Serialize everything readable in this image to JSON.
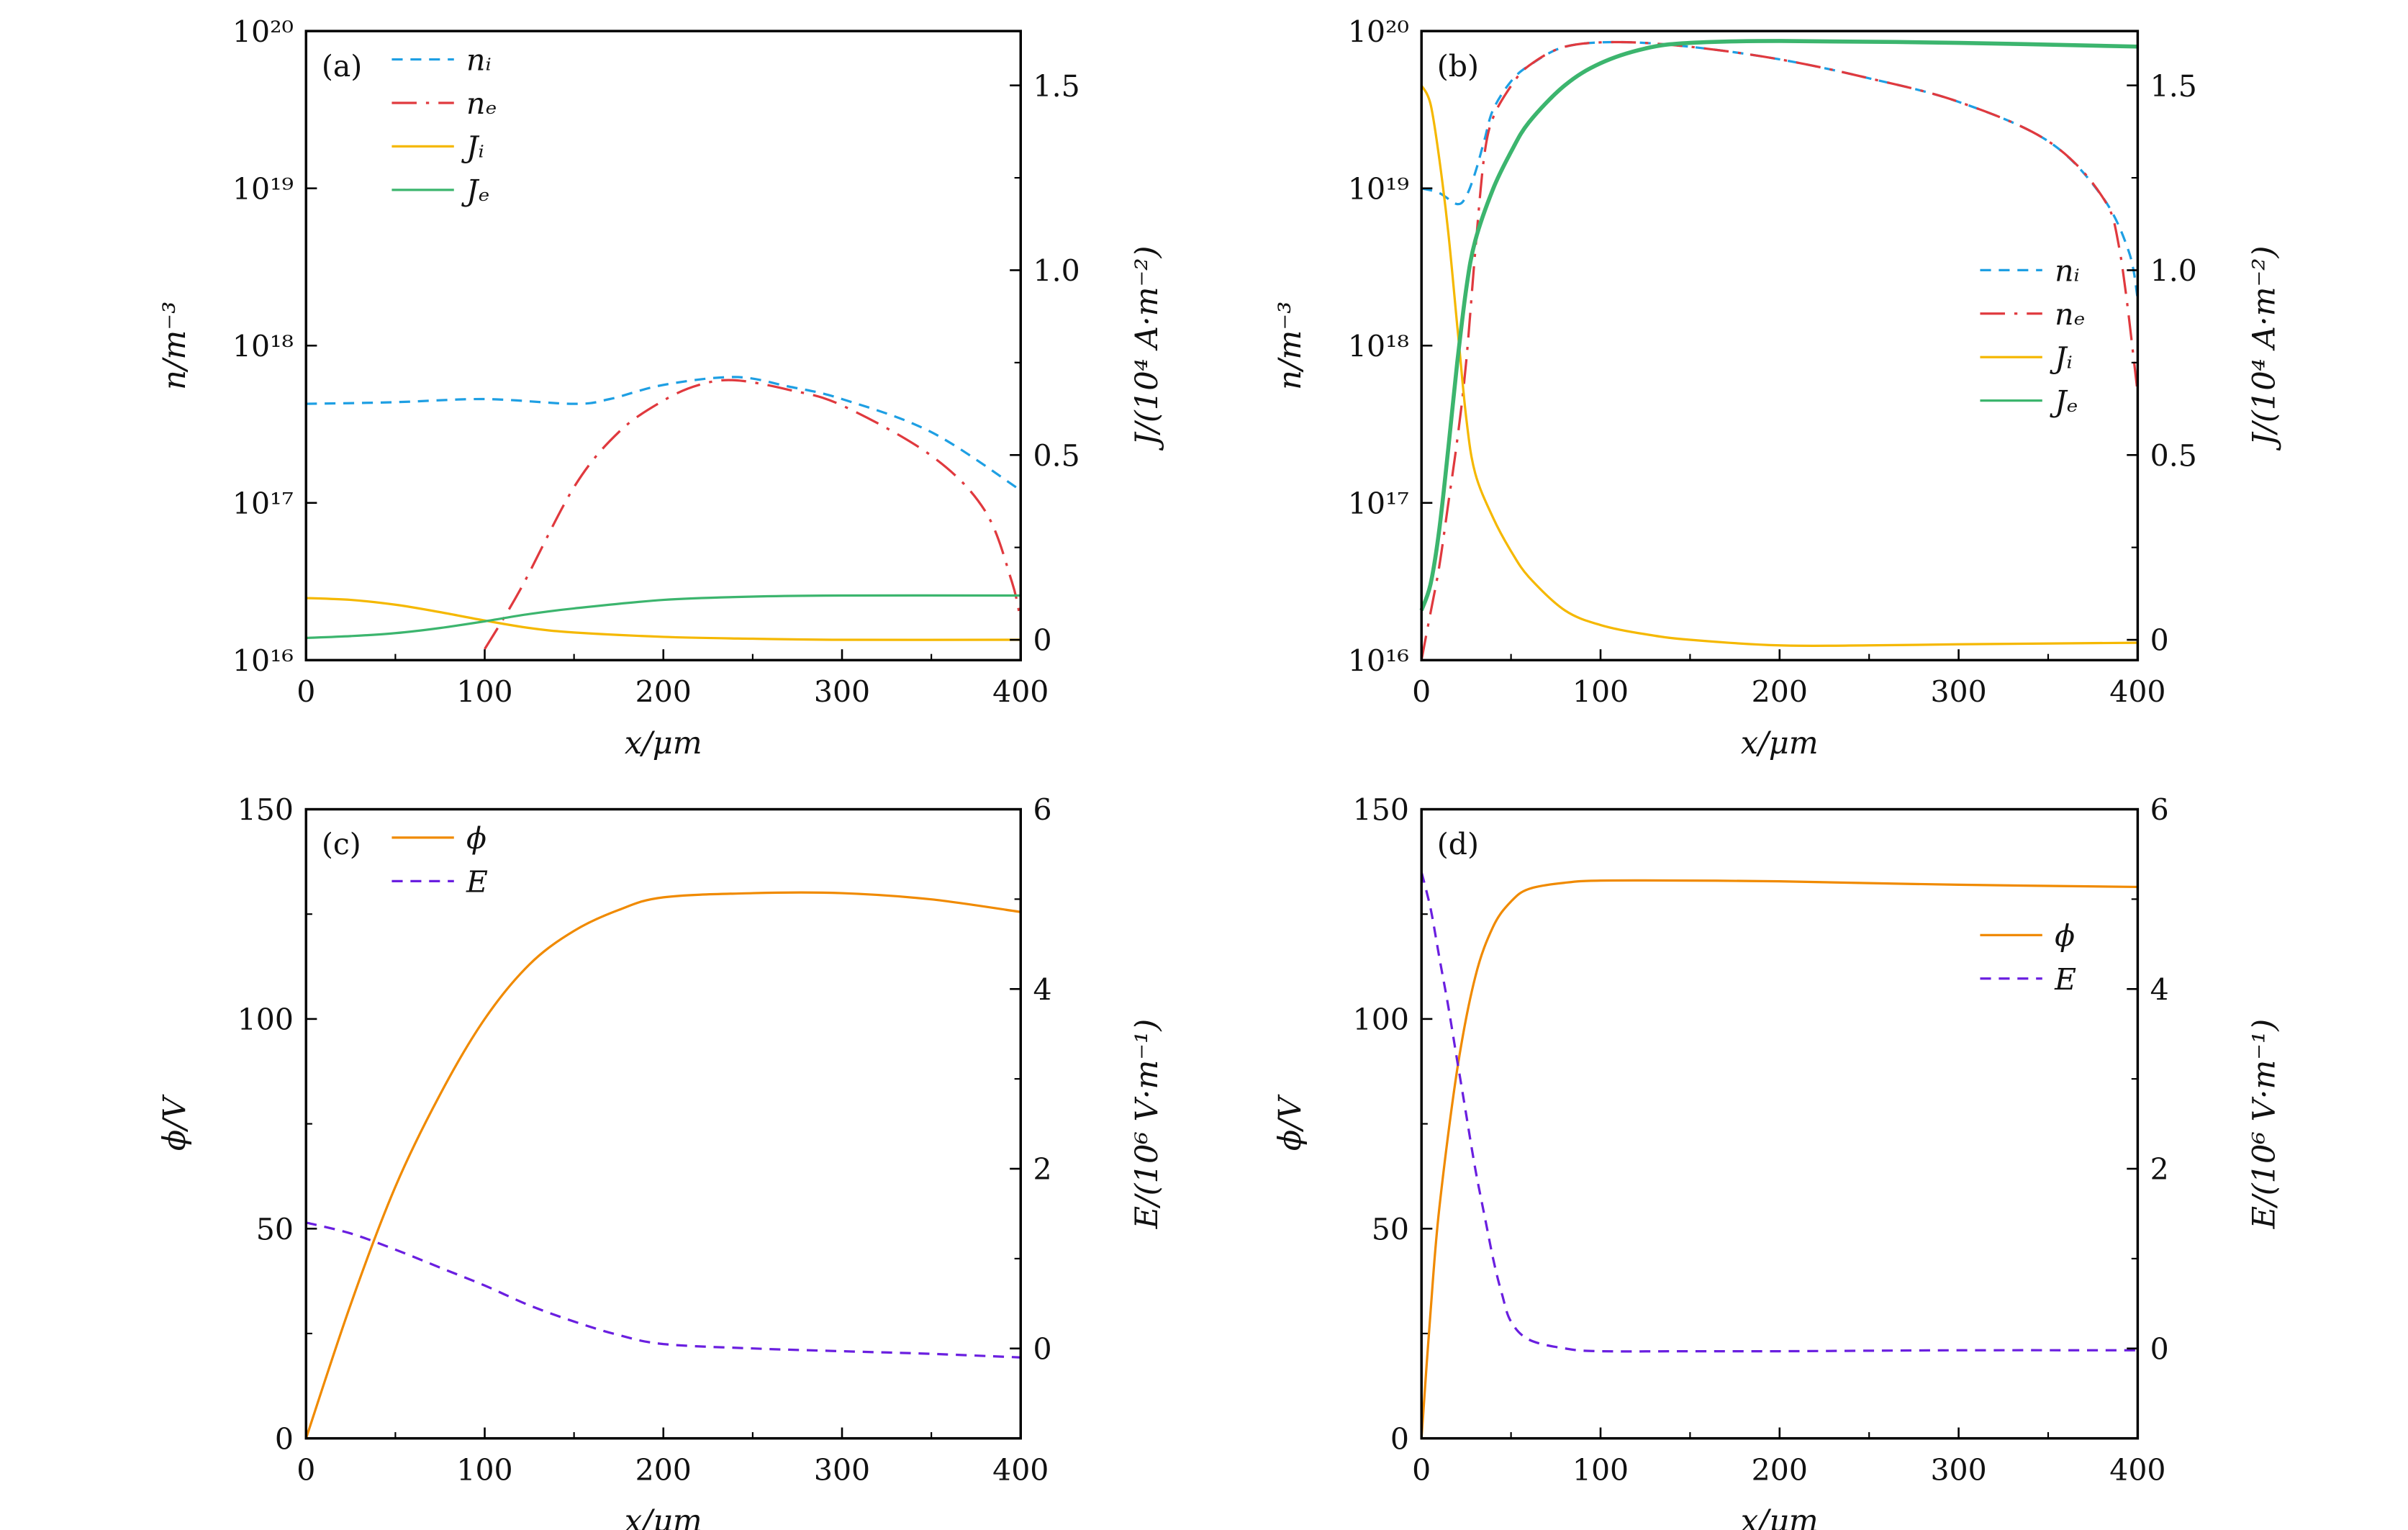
{
  "chart_data": [
    {
      "type": "line",
      "panel_label": "(a)",
      "xlabel": "x/μm",
      "ylabel": "n/m⁻³",
      "y2label": "J/(10⁴ A·m⁻²)",
      "xlim": [
        0,
        400
      ],
      "xticks": [
        "0",
        "100",
        "200",
        "300",
        "400"
      ],
      "yscale": "log",
      "ylim_log10": [
        16,
        20
      ],
      "yticks": [
        "10¹⁶",
        "10¹⁷",
        "10¹⁸",
        "10¹⁹",
        "10²⁰"
      ],
      "y2lim": [
        -0.055,
        1.647
      ],
      "y2ticks": [
        "0",
        "0.5",
        "1.0",
        "1.5"
      ],
      "legend_position": "top-left",
      "series": [
        {
          "name": "nᵢ",
          "axis": "left",
          "color": "#1e9fe3",
          "dash": "7 5",
          "x": [
            0,
            50,
            100,
            150,
            170,
            200,
            240,
            270,
            300,
            350,
            400
          ],
          "y_log10": [
            17.63,
            17.64,
            17.66,
            17.63,
            17.66,
            17.75,
            17.8,
            17.74,
            17.66,
            17.45,
            17.08
          ]
        },
        {
          "name": "nₑ",
          "axis": "left",
          "color": "#e0393e",
          "dash": "16 6 2 6",
          "x": [
            100,
            120,
            150,
            175,
            200,
            220,
            240,
            270,
            300,
            350,
            380,
            395,
            400
          ],
          "y_log10": [
            16.07,
            16.45,
            17.1,
            17.45,
            17.65,
            17.75,
            17.78,
            17.72,
            17.62,
            17.3,
            16.95,
            16.5,
            16.25
          ]
        },
        {
          "name": "Jᵢ",
          "axis": "right",
          "color": "#f5b800",
          "dash": "",
          "x": [
            0,
            25,
            50,
            75,
            100,
            125,
            150,
            200,
            250,
            300,
            400
          ],
          "y": [
            0.113,
            0.108,
            0.095,
            0.075,
            0.052,
            0.032,
            0.02,
            0.008,
            0.003,
            0.0,
            0.0
          ]
        },
        {
          "name": "Jₑ",
          "axis": "right",
          "color": "#3cb56e",
          "dash": "",
          "x": [
            0,
            25,
            50,
            75,
            100,
            125,
            150,
            200,
            250,
            300,
            400
          ],
          "y": [
            0.005,
            0.01,
            0.018,
            0.032,
            0.05,
            0.07,
            0.085,
            0.108,
            0.117,
            0.12,
            0.12
          ]
        }
      ]
    },
    {
      "type": "line",
      "panel_label": "(b)",
      "xlabel": "x/μm",
      "ylabel": "n/m⁻³",
      "y2label": "J/(10⁴ A·m⁻²)",
      "xlim": [
        0,
        400
      ],
      "xticks": [
        "0",
        "100",
        "200",
        "300",
        "400"
      ],
      "yscale": "log",
      "ylim_log10": [
        16,
        20
      ],
      "yticks": [
        "10¹⁶",
        "10¹⁷",
        "10¹⁸",
        "10¹⁹",
        "10²⁰"
      ],
      "y2lim": [
        -0.055,
        1.647
      ],
      "y2ticks": [
        "0",
        "0.5",
        "1.0",
        "1.5"
      ],
      "legend_position": "center-right",
      "series": [
        {
          "name": "nᵢ",
          "axis": "left",
          "color": "#1e9fe3",
          "dash": "7 5",
          "x": [
            0,
            10,
            20,
            25,
            30,
            35,
            40,
            50,
            60,
            80,
            110,
            150,
            200,
            250,
            300,
            350,
            380,
            395,
            400
          ],
          "y_log10": [
            19.0,
            18.97,
            18.9,
            18.95,
            19.1,
            19.3,
            19.5,
            19.68,
            19.78,
            19.9,
            19.93,
            19.9,
            19.82,
            19.7,
            19.55,
            19.3,
            18.95,
            18.6,
            18.3
          ]
        },
        {
          "name": "nₑ",
          "axis": "left",
          "color": "#e0393e",
          "dash": "16 6 2 6",
          "x": [
            0,
            5,
            10,
            15,
            20,
            25,
            30,
            35,
            40,
            50,
            60,
            80,
            110,
            150,
            200,
            250,
            300,
            350,
            380,
            390,
            400
          ],
          "y_log10": [
            16.0,
            16.3,
            16.6,
            17.0,
            17.4,
            17.9,
            18.6,
            19.2,
            19.45,
            19.65,
            19.78,
            19.9,
            19.93,
            19.9,
            19.82,
            19.7,
            19.55,
            19.3,
            18.95,
            18.6,
            17.7
          ]
        },
        {
          "name": "Jᵢ",
          "axis": "right",
          "color": "#f5b800",
          "dash": "",
          "x": [
            0,
            5,
            10,
            15,
            20,
            25,
            30,
            40,
            50,
            60,
            80,
            100,
            125,
            150,
            200,
            250,
            300,
            400
          ],
          "y": [
            1.5,
            1.45,
            1.3,
            1.1,
            0.85,
            0.6,
            0.45,
            0.33,
            0.24,
            0.17,
            0.08,
            0.04,
            0.015,
            0.0,
            -0.015,
            -0.015,
            -0.012,
            -0.008
          ]
        },
        {
          "name": "Jₑ",
          "axis": "right",
          "color": "#3cb56e",
          "dash": "",
          "x": [
            0,
            5,
            10,
            15,
            20,
            25,
            30,
            40,
            50,
            60,
            80,
            100,
            125,
            150,
            200,
            300,
            400
          ],
          "y": [
            0.08,
            0.15,
            0.3,
            0.52,
            0.75,
            0.95,
            1.08,
            1.22,
            1.32,
            1.4,
            1.5,
            1.56,
            1.6,
            1.615,
            1.62,
            1.615,
            1.605
          ]
        }
      ]
    },
    {
      "type": "line",
      "panel_label": "(c)",
      "xlabel": "x/μm",
      "ylabel": "ϕ/V",
      "y2label": "E/(10⁶ V·m⁻¹)",
      "xlim": [
        0,
        400
      ],
      "xticks": [
        "0",
        "100",
        "200",
        "300",
        "400"
      ],
      "yscale": "linear",
      "ylim": [
        0,
        150
      ],
      "yticks": [
        "0",
        "50",
        "100",
        "150"
      ],
      "y2lim": [
        -1,
        6
      ],
      "y2ticks": [
        "0",
        "2",
        "4",
        "6"
      ],
      "legend_position": "top-left",
      "series": [
        {
          "name": "ϕ",
          "axis": "left",
          "color": "#f08a00",
          "dash": "",
          "x": [
            0,
            25,
            50,
            75,
            100,
            125,
            150,
            175,
            200,
            250,
            300,
            350,
            400
          ],
          "y": [
            0,
            32,
            60,
            82,
            100,
            113,
            121,
            126,
            129,
            130,
            130,
            128.5,
            125.5
          ]
        },
        {
          "name": "E",
          "axis": "right",
          "color": "#6a1fe0",
          "dash": "7 5",
          "x": [
            0,
            25,
            50,
            75,
            100,
            125,
            150,
            175,
            200,
            250,
            300,
            350,
            400
          ],
          "y": [
            1.4,
            1.28,
            1.1,
            0.9,
            0.7,
            0.48,
            0.3,
            0.15,
            0.05,
            0.0,
            -0.03,
            -0.06,
            -0.1
          ]
        }
      ]
    },
    {
      "type": "line",
      "panel_label": "(d)",
      "xlabel": "x/μm",
      "ylabel": "ϕ/V",
      "y2label": "E/(10⁶ V·m⁻¹)",
      "xlim": [
        0,
        400
      ],
      "xticks": [
        "0",
        "100",
        "200",
        "300",
        "400"
      ],
      "yscale": "linear",
      "ylim": [
        0,
        150
      ],
      "yticks": [
        "0",
        "50",
        "100",
        "150"
      ],
      "y2lim": [
        -1,
        6
      ],
      "y2ticks": [
        "0",
        "2",
        "4",
        "6"
      ],
      "legend_position": "top-right",
      "series": [
        {
          "name": "ϕ",
          "axis": "left",
          "color": "#f08a00",
          "dash": "",
          "x": [
            0,
            5,
            10,
            20,
            30,
            40,
            50,
            60,
            80,
            100,
            150,
            200,
            300,
            400
          ],
          "y": [
            0,
            30,
            55,
            88,
            110,
            122,
            128,
            131,
            132.5,
            133,
            133,
            132.8,
            132,
            131.5
          ]
        },
        {
          "name": "E",
          "axis": "right",
          "color": "#6a1fe0",
          "dash": "7 5",
          "x": [
            0,
            5,
            10,
            15,
            20,
            25,
            30,
            35,
            40,
            45,
            50,
            60,
            80,
            100,
            150,
            200,
            300,
            400
          ],
          "y": [
            5.3,
            4.9,
            4.35,
            3.8,
            3.2,
            2.6,
            2.0,
            1.5,
            1.0,
            0.6,
            0.3,
            0.1,
            0.0,
            -0.03,
            -0.03,
            -0.03,
            -0.02,
            -0.02
          ]
        }
      ]
    }
  ]
}
